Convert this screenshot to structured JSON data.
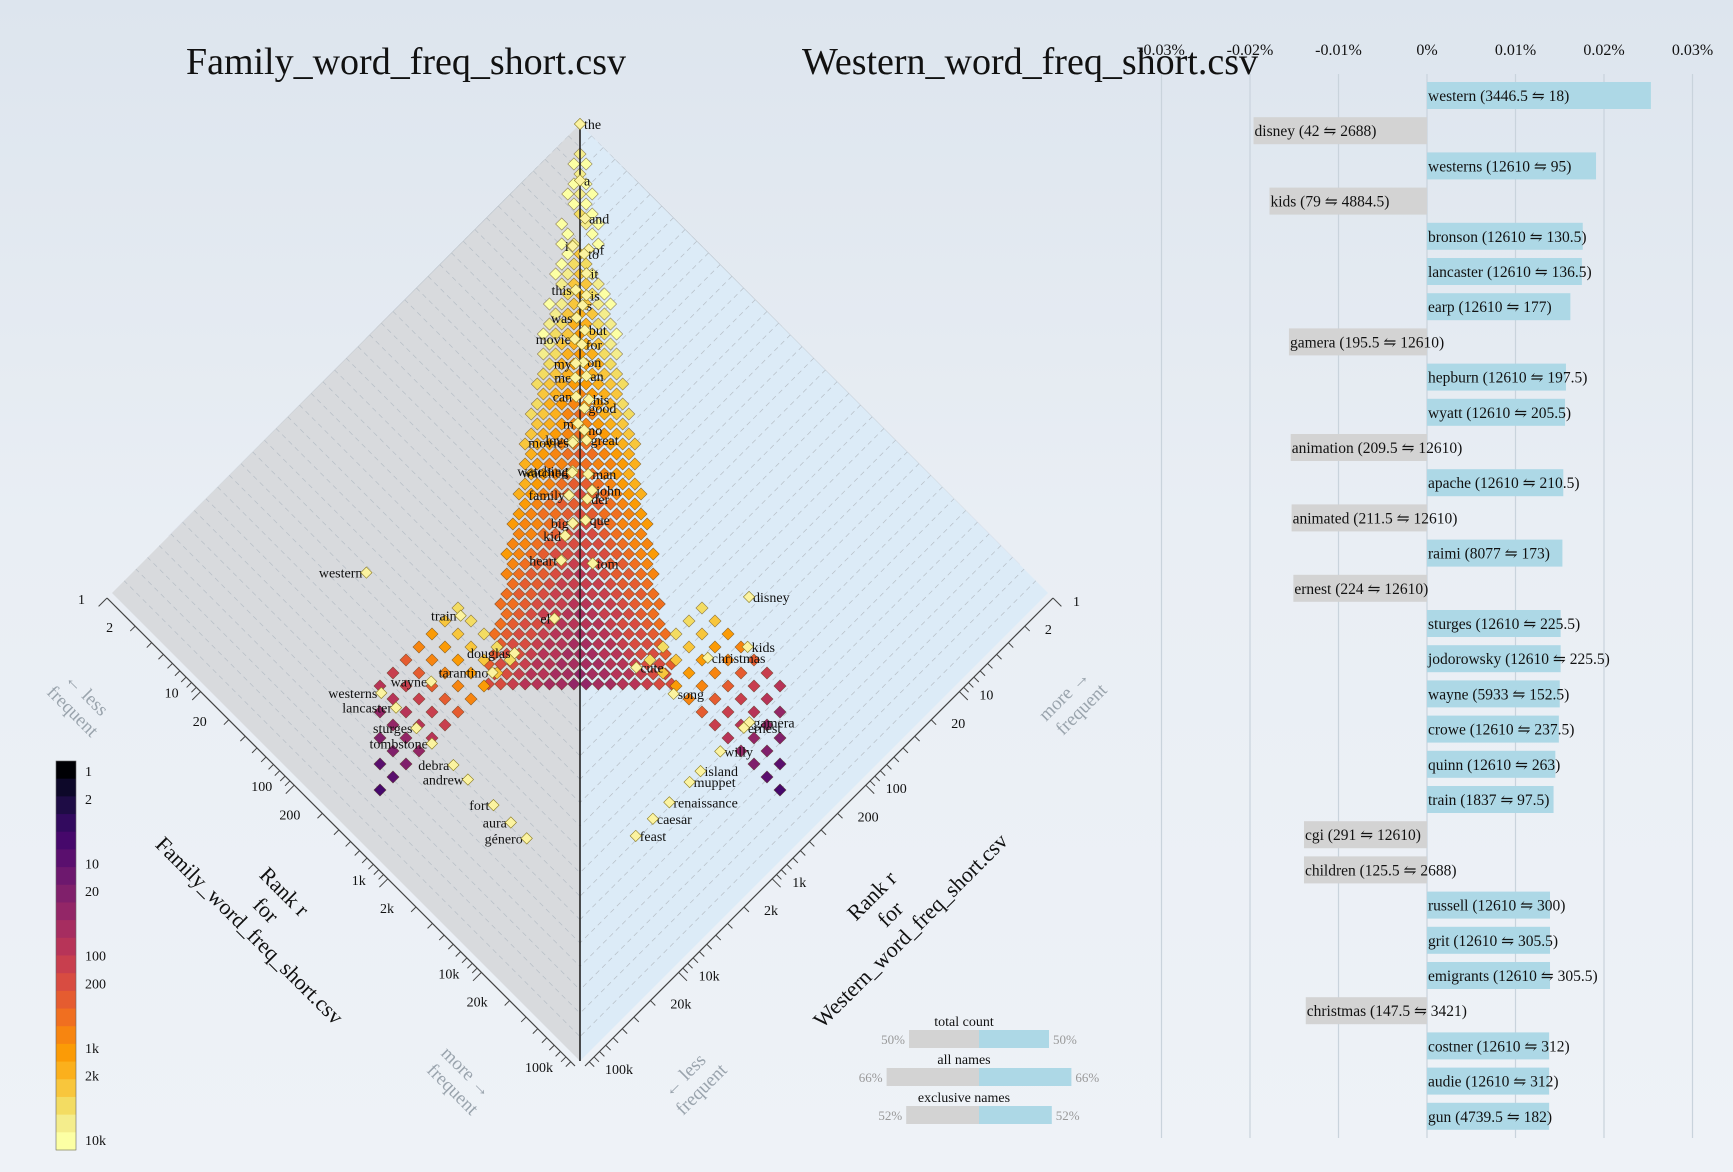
{
  "titles": {
    "left": "Family_word_freq_short.csv",
    "right": "Western_word_freq_short.csv"
  },
  "colors": {
    "left_bg": "#d8dadd",
    "right_bg": "#dcebf7",
    "bar_left": "#d3d3d3",
    "bar_right": "#add8e6"
  },
  "chart_data": [
    {
      "type": "scatter",
      "subtype": "allotaxonograph rank-rank histogram",
      "axes": {
        "left": {
          "label_lines": [
            "Rank r",
            "for",
            "Family_word_freq_short.csv"
          ],
          "tick_labels": [
            "1",
            "2",
            "10",
            "20",
            "100",
            "200",
            "1k",
            "2k",
            "10k",
            "20k",
            "100k"
          ]
        },
        "right": {
          "label_lines": [
            "Rank r",
            "for",
            "Western_word_freq_short.csv"
          ],
          "tick_labels": [
            "1",
            "2",
            "10",
            "20",
            "100",
            "200",
            "1k",
            "2k",
            "10k",
            "20k",
            "100k"
          ]
        },
        "scale": "log",
        "range": [
          1,
          100000
        ]
      },
      "hints": {
        "left_upper": [
          "← less",
          "frequent"
        ],
        "left_lower": [
          "more →",
          "frequent"
        ],
        "right_upper": [
          "more →",
          "frequent"
        ],
        "right_lower": [
          "← less",
          "frequent"
        ]
      },
      "words": [
        {
          "w": "the",
          "r1": 1,
          "r2": 1
        },
        {
          "w": "a",
          "r1": 2,
          "r2": 2
        },
        {
          "w": "and",
          "r1": 3,
          "r2": 3.4
        },
        {
          "w": "of",
          "r1": 4.2,
          "r2": 5.2
        },
        {
          "w": "to",
          "r1": 4.7,
          "r2": 5.2
        },
        {
          "w": "i",
          "r1": 4.9,
          "r2": 4.1
        },
        {
          "w": "it",
          "r1": 5.8,
          "r2": 6.8
        },
        {
          "w": "is",
          "r1": 7.6,
          "r2": 8.9
        },
        {
          "w": "this",
          "r1": 8.1,
          "r2": 7.3
        },
        {
          "w": "s",
          "r1": 9,
          "r2": 9.6
        },
        {
          "w": "was",
          "r1": 11.3,
          "r2": 10.4
        },
        {
          "w": "but",
          "r1": 11.9,
          "r2": 13.4
        },
        {
          "w": "for",
          "r1": 14.7,
          "r2": 15.4
        },
        {
          "w": "movie",
          "r1": 15,
          "r2": 13.2
        },
        {
          "w": "on",
          "r1": 18,
          "r2": 19.5
        },
        {
          "w": "an",
          "r1": 20.5,
          "r2": 24
        },
        {
          "w": "my",
          "r1": 20,
          "r2": 18
        },
        {
          "w": "me",
          "r1": 24,
          "r2": 21.4
        },
        {
          "w": "his",
          "r1": 26.5,
          "r2": 33
        },
        {
          "w": "can",
          "r1": 30,
          "r2": 27.3
        },
        {
          "w": "good",
          "r1": 31.2,
          "r2": 34.7
        },
        {
          "w": "m",
          "r1": 40.8,
          "r2": 38.7
        },
        {
          "w": "no",
          "r1": 41,
          "r2": 45.5
        },
        {
          "w": "great",
          "r1": 45,
          "r2": 53
        },
        {
          "w": "love",
          "r1": 53,
          "r2": 45
        },
        {
          "w": "movies",
          "r1": 55,
          "r2": 46
        },
        {
          "w": "man",
          "r1": 67,
          "r2": 82
        },
        {
          "w": "john",
          "r1": 78,
          "r2": 105
        },
        {
          "w": "watching",
          "r1": 78,
          "r2": 65
        },
        {
          "w": "watched",
          "r1": 80,
          "r2": 66
        },
        {
          "w": "der",
          "r1": 92,
          "r2": 110
        },
        {
          "w": "family",
          "r1": 110,
          "r2": 84
        },
        {
          "w": "que",
          "r1": 122,
          "r2": 140
        },
        {
          "w": "big",
          "r1": 148,
          "r2": 124
        },
        {
          "w": "western",
          "r1": 3446.5,
          "r2": 18
        },
        {
          "w": "disney",
          "r1": 42,
          "r2": 2688
        },
        {
          "w": "kid",
          "r1": 190,
          "r2": 132
        },
        {
          "w": "tom",
          "r1": 190,
          "r2": 260
        },
        {
          "w": "heart",
          "r1": 270,
          "r2": 170
        },
        {
          "w": "train",
          "r1": 1837,
          "r2": 97.5
        },
        {
          "w": "el",
          "r1": 600,
          "r2": 320
        },
        {
          "w": "douglas",
          "r1": 1500,
          "r2": 300
        },
        {
          "w": "tarantino",
          "r1": 2500,
          "r2": 290
        },
        {
          "w": "kids",
          "r1": 79,
          "r2": 4884.5
        },
        {
          "w": "christmas",
          "r1": 147.5,
          "r2": 3421
        },
        {
          "w": "wayne",
          "r1": 5933,
          "r2": 152.5
        },
        {
          "w": "cute",
          "r1": 400,
          "r2": 1600
        },
        {
          "w": "westerns",
          "r1": 12610,
          "r2": 95
        },
        {
          "w": "song",
          "r1": 350,
          "r2": 3500
        },
        {
          "w": "lancaster",
          "r1": 12610,
          "r2": 136.5
        },
        {
          "w": "gamera",
          "r1": 195.5,
          "r2": 12610
        },
        {
          "w": "ernest",
          "r1": 224,
          "r2": 12610
        },
        {
          "w": "sturges",
          "r1": 12610,
          "r2": 225.5
        },
        {
          "w": "tombstone",
          "r1": 12610,
          "r2": 330
        },
        {
          "w": "willy",
          "r1": 400,
          "r2": 12610
        },
        {
          "w": "island",
          "r1": 650,
          "r2": 12610
        },
        {
          "w": "debra",
          "r1": 12610,
          "r2": 560
        },
        {
          "w": "muppet",
          "r1": 850,
          "r2": 12610
        },
        {
          "w": "andrew",
          "r1": 12610,
          "r2": 800
        },
        {
          "w": "renaissance",
          "r1": 1400,
          "r2": 12610
        },
        {
          "w": "fort",
          "r1": 12610,
          "r2": 1500
        },
        {
          "w": "caesar",
          "r1": 2100,
          "r2": 12610
        },
        {
          "w": "aura",
          "r1": 12610,
          "r2": 2300
        },
        {
          "w": "feast",
          "r1": 3200,
          "r2": 12610
        },
        {
          "w": "género",
          "r1": 12610,
          "r2": 3400
        }
      ],
      "colorbar": {
        "label": "counts",
        "tick_labels": [
          "1",
          "2",
          "10",
          "20",
          "100",
          "200",
          "1k",
          "2k",
          "10k"
        ],
        "colors": [
          "#000004",
          "#0d0829",
          "#1e0c45",
          "#320a5e",
          "#46086b",
          "#5a0f6e",
          "#6d186e",
          "#80206b",
          "#932667",
          "#a62d60",
          "#b73458",
          "#c83f4e",
          "#d84c41",
          "#e55c30",
          "#f06f20",
          "#f78510",
          "#fb9b06",
          "#fbb01c",
          "#f8c63c",
          "#f3dc62",
          "#f4ed8c",
          "#fcffa4"
        ]
      },
      "balance": {
        "rows": [
          {
            "label": "total count",
            "left": "50%",
            "right": "50%",
            "lv": 0.5,
            "rv": 0.5
          },
          {
            "label": "all names",
            "left": "66%",
            "right": "66%",
            "lv": 0.66,
            "rv": 0.66
          },
          {
            "label": "exclusive names",
            "left": "52%",
            "right": "52%",
            "lv": 0.52,
            "rv": 0.52
          }
        ]
      }
    },
    {
      "type": "bar",
      "orientation": "horizontal",
      "x_tick_labels": [
        "-0.03%",
        "-0.02%",
        "-0.01%",
        "0%",
        "0.01%",
        "0.02%",
        "0.03%"
      ],
      "xlim": [
        -0.03,
        0.03
      ],
      "bars": [
        {
          "label": "western (3446.5 ⇋ 18)",
          "value": 0.0253
        },
        {
          "label": "disney (42 ⇋ 2688)",
          "value": -0.0196
        },
        {
          "label": "westerns (12610 ⇋ 95)",
          "value": 0.0191
        },
        {
          "label": "kids (79 ⇋ 4884.5)",
          "value": -0.0178
        },
        {
          "label": "bronson (12610 ⇋ 130.5)",
          "value": 0.0176
        },
        {
          "label": "lancaster (12610 ⇋ 136.5)",
          "value": 0.0175
        },
        {
          "label": "earp (12610 ⇋ 177)",
          "value": 0.0162
        },
        {
          "label": "gamera (195.5 ⇋ 12610)",
          "value": -0.0156
        },
        {
          "label": "hepburn (12610 ⇋ 197.5)",
          "value": 0.0157
        },
        {
          "label": "wyatt (12610 ⇋ 205.5)",
          "value": 0.0156
        },
        {
          "label": "animation (209.5 ⇋ 12610)",
          "value": -0.0154
        },
        {
          "label": "apache (12610 ⇋ 210.5)",
          "value": 0.0154
        },
        {
          "label": "animated (211.5 ⇋ 12610)",
          "value": -0.0153
        },
        {
          "label": "raimi (8077 ⇋ 173)",
          "value": 0.0153
        },
        {
          "label": "ernest (224 ⇋ 12610)",
          "value": -0.0151
        },
        {
          "label": "sturges (12610 ⇋ 225.5)",
          "value": 0.0151
        },
        {
          "label": "jodorowsky (12610 ⇋ 225.5)",
          "value": 0.0151
        },
        {
          "label": "wayne (5933 ⇋ 152.5)",
          "value": 0.015
        },
        {
          "label": "crowe (12610 ⇋ 237.5)",
          "value": 0.0149
        },
        {
          "label": "quinn (12610 ⇋ 263)",
          "value": 0.0145
        },
        {
          "label": "train (1837 ⇋ 97.5)",
          "value": 0.0143
        },
        {
          "label": "cgi (291 ⇋ 12610)",
          "value": -0.0139
        },
        {
          "label": "children (125.5 ⇋ 2688)",
          "value": -0.0139
        },
        {
          "label": "russell (12610 ⇋ 300)",
          "value": 0.0139
        },
        {
          "label": "grit (12610 ⇋ 305.5)",
          "value": 0.0139
        },
        {
          "label": "emigrants (12610 ⇋ 305.5)",
          "value": 0.0139
        },
        {
          "label": "christmas (147.5 ⇋ 3421)",
          "value": -0.0137
        },
        {
          "label": "costner (12610 ⇋ 312)",
          "value": 0.0138
        },
        {
          "label": "audie (12610 ⇋ 312)",
          "value": 0.0138
        },
        {
          "label": "gun (4739.5 ⇋ 182)",
          "value": 0.0138
        }
      ]
    }
  ]
}
